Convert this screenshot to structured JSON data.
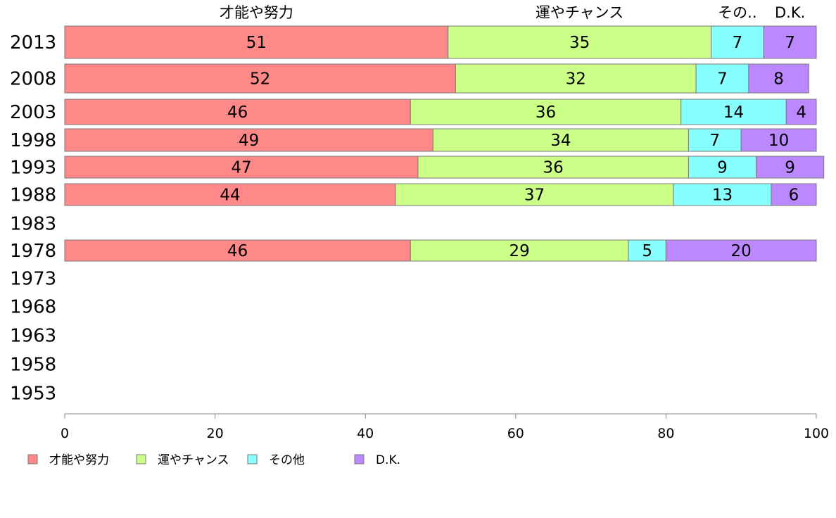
{
  "chart_data": {
    "type": "bar",
    "orientation": "horizontal",
    "stacked": true,
    "categories": [
      "2013",
      "2008",
      "2003",
      "1998",
      "1993",
      "1988",
      "1983",
      "1978",
      "1973",
      "1968",
      "1963",
      "1958",
      "1953"
    ],
    "series": [
      {
        "name": "才能や努力",
        "header": "才能や努力",
        "color": "#ff8888",
        "values": [
          51,
          52,
          46,
          49,
          47,
          44,
          null,
          46,
          null,
          null,
          null,
          null,
          null
        ]
      },
      {
        "name": "運やチャンス",
        "header": "運やチャンス",
        "color": "#ccff88",
        "values": [
          35,
          32,
          36,
          34,
          36,
          37,
          null,
          29,
          null,
          null,
          null,
          null,
          null
        ]
      },
      {
        "name": "その他",
        "header": "その..",
        "color": "#88ffff",
        "values": [
          7,
          7,
          14,
          7,
          9,
          13,
          null,
          5,
          null,
          null,
          null,
          null,
          null
        ]
      },
      {
        "name": "D.K.",
        "header": "D.K.",
        "color": "#bb88ff",
        "values": [
          7,
          8,
          4,
          10,
          9,
          6,
          null,
          20,
          null,
          null,
          null,
          null,
          null
        ]
      }
    ],
    "xlim": [
      0,
      100
    ],
    "xticks": [
      0,
      20,
      40,
      60,
      80,
      100
    ],
    "legend_position": "bottom-left",
    "grid": false
  }
}
